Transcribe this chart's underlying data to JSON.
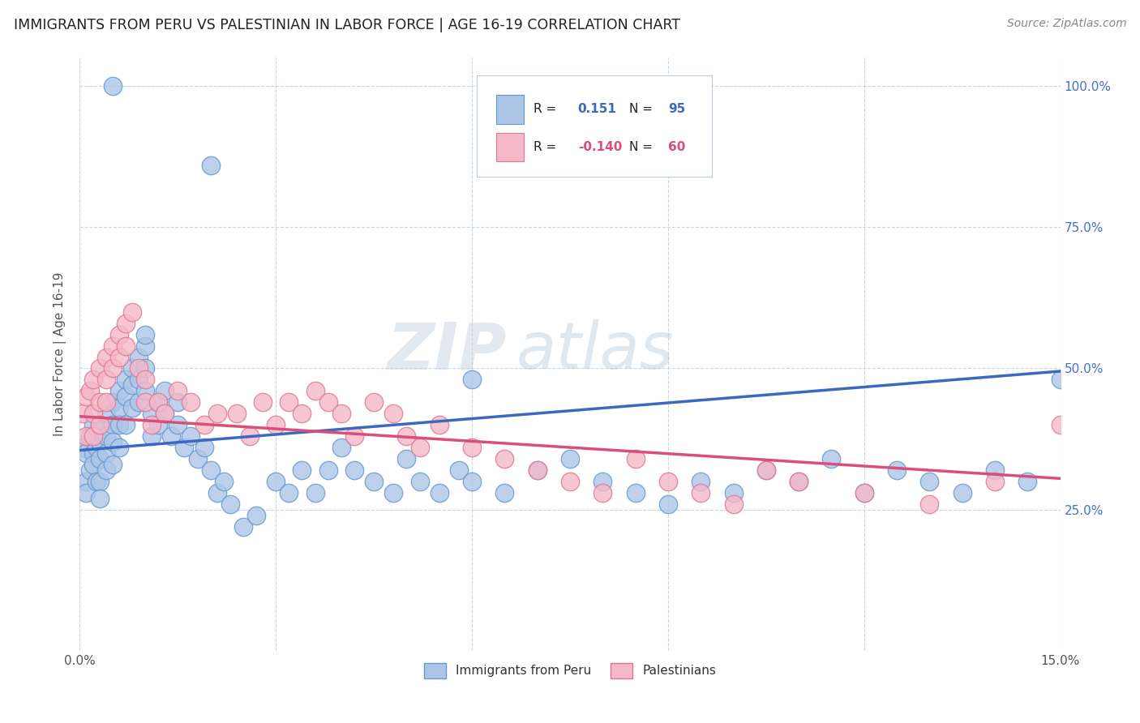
{
  "title": "IMMIGRANTS FROM PERU VS PALESTINIAN IN LABOR FORCE | AGE 16-19 CORRELATION CHART",
  "source": "Source: ZipAtlas.com",
  "ylabel": "In Labor Force | Age 16-19",
  "xlim": [
    0.0,
    0.15
  ],
  "ylim": [
    0.0,
    1.05
  ],
  "xticks": [
    0.0,
    0.03,
    0.06,
    0.09,
    0.12,
    0.15
  ],
  "xticklabels": [
    "0.0%",
    "",
    "",
    "",
    "",
    "15.0%"
  ],
  "yticks": [
    0.0,
    0.25,
    0.5,
    0.75,
    1.0
  ],
  "yticklabels_right": [
    "",
    "25.0%",
    "50.0%",
    "75.0%",
    "100.0%"
  ],
  "watermark_zip": "ZIP",
  "watermark_atlas": "atlas",
  "series1_label": "Immigrants from Peru",
  "series2_label": "Palestinians",
  "series1_color": "#adc6e8",
  "series2_color": "#f5b8c8",
  "series1_edge": "#6699cc",
  "series2_edge": "#dd7799",
  "trend1_color": "#3a6abf",
  "trend2_color": "#d94f7a",
  "bg_color": "#ffffff",
  "grid_color": "#c8d4e8",
  "title_color": "#222222",
  "tick_color": "#4472c4",
  "peru_x": [
    0.0005,
    0.001,
    0.001,
    0.001,
    0.0015,
    0.0015,
    0.002,
    0.002,
    0.002,
    0.0025,
    0.0025,
    0.003,
    0.003,
    0.003,
    0.003,
    0.003,
    0.004,
    0.004,
    0.004,
    0.004,
    0.005,
    0.005,
    0.005,
    0.005,
    0.006,
    0.006,
    0.006,
    0.006,
    0.007,
    0.007,
    0.007,
    0.008,
    0.008,
    0.008,
    0.009,
    0.009,
    0.009,
    0.01,
    0.01,
    0.01,
    0.011,
    0.011,
    0.012,
    0.012,
    0.013,
    0.013,
    0.014,
    0.015,
    0.015,
    0.016,
    0.017,
    0.018,
    0.019,
    0.02,
    0.021,
    0.022,
    0.023,
    0.025,
    0.027,
    0.03,
    0.032,
    0.034,
    0.036,
    0.038,
    0.04,
    0.042,
    0.045,
    0.048,
    0.05,
    0.052,
    0.055,
    0.058,
    0.06,
    0.065,
    0.07,
    0.075,
    0.08,
    0.085,
    0.09,
    0.095,
    0.1,
    0.105,
    0.11,
    0.115,
    0.12,
    0.125,
    0.13,
    0.135,
    0.14,
    0.145,
    0.15,
    0.06,
    0.02,
    0.01,
    0.005
  ],
  "peru_y": [
    0.36,
    0.35,
    0.3,
    0.28,
    0.38,
    0.32,
    0.4,
    0.35,
    0.33,
    0.36,
    0.3,
    0.4,
    0.37,
    0.34,
    0.3,
    0.27,
    0.42,
    0.38,
    0.35,
    0.32,
    0.44,
    0.4,
    0.37,
    0.33,
    0.46,
    0.43,
    0.4,
    0.36,
    0.48,
    0.45,
    0.4,
    0.5,
    0.47,
    0.43,
    0.52,
    0.48,
    0.44,
    0.54,
    0.5,
    0.46,
    0.42,
    0.38,
    0.44,
    0.4,
    0.46,
    0.42,
    0.38,
    0.44,
    0.4,
    0.36,
    0.38,
    0.34,
    0.36,
    0.32,
    0.28,
    0.3,
    0.26,
    0.22,
    0.24,
    0.3,
    0.28,
    0.32,
    0.28,
    0.32,
    0.36,
    0.32,
    0.3,
    0.28,
    0.34,
    0.3,
    0.28,
    0.32,
    0.3,
    0.28,
    0.32,
    0.34,
    0.3,
    0.28,
    0.26,
    0.3,
    0.28,
    0.32,
    0.3,
    0.34,
    0.28,
    0.32,
    0.3,
    0.28,
    0.32,
    0.3,
    0.48,
    0.48,
    0.86,
    0.56,
    1.0
  ],
  "pal_x": [
    0.0005,
    0.001,
    0.001,
    0.0015,
    0.002,
    0.002,
    0.002,
    0.003,
    0.003,
    0.003,
    0.004,
    0.004,
    0.004,
    0.005,
    0.005,
    0.006,
    0.006,
    0.007,
    0.007,
    0.008,
    0.009,
    0.01,
    0.01,
    0.011,
    0.012,
    0.013,
    0.015,
    0.017,
    0.019,
    0.021,
    0.024,
    0.026,
    0.028,
    0.03,
    0.032,
    0.034,
    0.036,
    0.038,
    0.04,
    0.042,
    0.045,
    0.048,
    0.05,
    0.052,
    0.055,
    0.06,
    0.065,
    0.07,
    0.075,
    0.08,
    0.085,
    0.09,
    0.095,
    0.1,
    0.105,
    0.11,
    0.12,
    0.13,
    0.14,
    0.15
  ],
  "pal_y": [
    0.42,
    0.45,
    0.38,
    0.46,
    0.48,
    0.42,
    0.38,
    0.5,
    0.44,
    0.4,
    0.52,
    0.48,
    0.44,
    0.54,
    0.5,
    0.56,
    0.52,
    0.58,
    0.54,
    0.6,
    0.5,
    0.48,
    0.44,
    0.4,
    0.44,
    0.42,
    0.46,
    0.44,
    0.4,
    0.42,
    0.42,
    0.38,
    0.44,
    0.4,
    0.44,
    0.42,
    0.46,
    0.44,
    0.42,
    0.38,
    0.44,
    0.42,
    0.38,
    0.36,
    0.4,
    0.36,
    0.34,
    0.32,
    0.3,
    0.28,
    0.34,
    0.3,
    0.28,
    0.26,
    0.32,
    0.3,
    0.28,
    0.26,
    0.3,
    0.4
  ],
  "trend1_x0": 0.0,
  "trend1_x1": 0.15,
  "trend1_y0": 0.355,
  "trend1_y1": 0.495,
  "trend2_x0": 0.0,
  "trend2_x1": 0.15,
  "trend2_y0": 0.415,
  "trend2_y1": 0.305
}
